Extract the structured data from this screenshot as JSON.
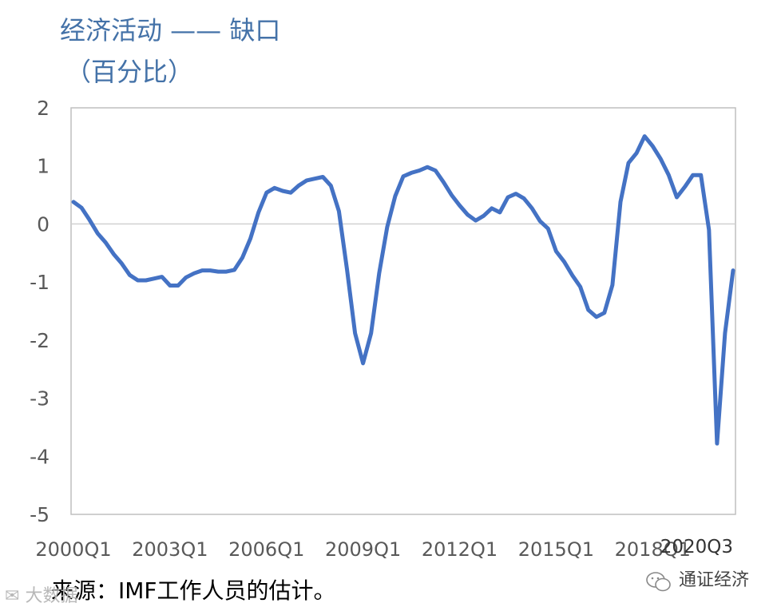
{
  "chart_data": {
    "type": "line",
    "title": "经济活动 —— 缺口",
    "subtitle": "（百分比）",
    "ylim": [
      -5,
      2
    ],
    "y_ticks": [
      "2",
      "1",
      "0",
      "-1",
      "-2",
      "-3",
      "-4",
      "-5"
    ],
    "x_tick_labels": [
      "2000Q1",
      "2003Q1",
      "2006Q1",
      "2009Q1",
      "2012Q1",
      "2015Q1",
      "2018Q1",
      "2020Q3"
    ],
    "grid": "zero line only",
    "series": [
      {
        "color": "#4472c4",
        "x": [
          "2000Q1",
          "2000Q2",
          "2000Q3",
          "2000Q4",
          "2001Q1",
          "2001Q2",
          "2001Q3",
          "2001Q4",
          "2002Q1",
          "2002Q2",
          "2002Q3",
          "2002Q4",
          "2003Q1",
          "2003Q2",
          "2003Q3",
          "2003Q4",
          "2004Q1",
          "2004Q2",
          "2004Q3",
          "2004Q4",
          "2005Q1",
          "2005Q2",
          "2005Q3",
          "2005Q4",
          "2006Q1",
          "2006Q2",
          "2006Q3",
          "2006Q4",
          "2007Q1",
          "2007Q2",
          "2007Q3",
          "2007Q4",
          "2008Q1",
          "2008Q2",
          "2008Q3",
          "2008Q4",
          "2009Q1",
          "2009Q2",
          "2009Q3",
          "2009Q4",
          "2010Q1",
          "2010Q2",
          "2010Q3",
          "2010Q4",
          "2011Q1",
          "2011Q2",
          "2011Q3",
          "2011Q4",
          "2012Q1",
          "2012Q2",
          "2012Q3",
          "2012Q4",
          "2013Q1",
          "2013Q2",
          "2013Q3",
          "2013Q4",
          "2014Q1",
          "2014Q2",
          "2014Q3",
          "2014Q4",
          "2015Q1",
          "2015Q2",
          "2015Q3",
          "2015Q4",
          "2016Q1",
          "2016Q2",
          "2016Q3",
          "2016Q4",
          "2017Q1",
          "2017Q2",
          "2017Q3",
          "2017Q4",
          "2018Q1",
          "2018Q2",
          "2018Q3",
          "2018Q4",
          "2019Q1",
          "2019Q2",
          "2019Q3",
          "2019Q4",
          "2020Q1",
          "2020Q2",
          "2020Q3"
        ],
        "values": [
          0.38,
          0.28,
          0.07,
          -0.16,
          -0.32,
          -0.52,
          -0.68,
          -0.88,
          -0.97,
          -0.97,
          -0.94,
          -0.91,
          -1.06,
          -1.06,
          -0.92,
          -0.85,
          -0.8,
          -0.8,
          -0.82,
          -0.82,
          -0.79,
          -0.58,
          -0.25,
          0.2,
          0.54,
          0.62,
          0.57,
          0.54,
          0.66,
          0.75,
          0.78,
          0.81,
          0.66,
          0.22,
          -0.78,
          -1.88,
          -2.4,
          -1.88,
          -0.85,
          -0.05,
          0.48,
          0.82,
          0.88,
          0.92,
          0.98,
          0.92,
          0.72,
          0.5,
          0.32,
          0.16,
          0.06,
          0.14,
          0.27,
          0.2,
          0.46,
          0.52,
          0.44,
          0.27,
          0.05,
          -0.08,
          -0.47,
          -0.65,
          -0.88,
          -1.08,
          -1.48,
          -1.6,
          -1.53,
          -1.05,
          0.38,
          1.05,
          1.22,
          1.51,
          1.34,
          1.12,
          0.84,
          0.46,
          0.64,
          0.84,
          0.84,
          -0.1,
          -3.78,
          -1.88,
          -0.8
        ]
      }
    ]
  },
  "footer": {
    "source": "来源：IMF工作人员的估计。",
    "watermark_left": "大数据",
    "watermark_right": "通证经济"
  }
}
